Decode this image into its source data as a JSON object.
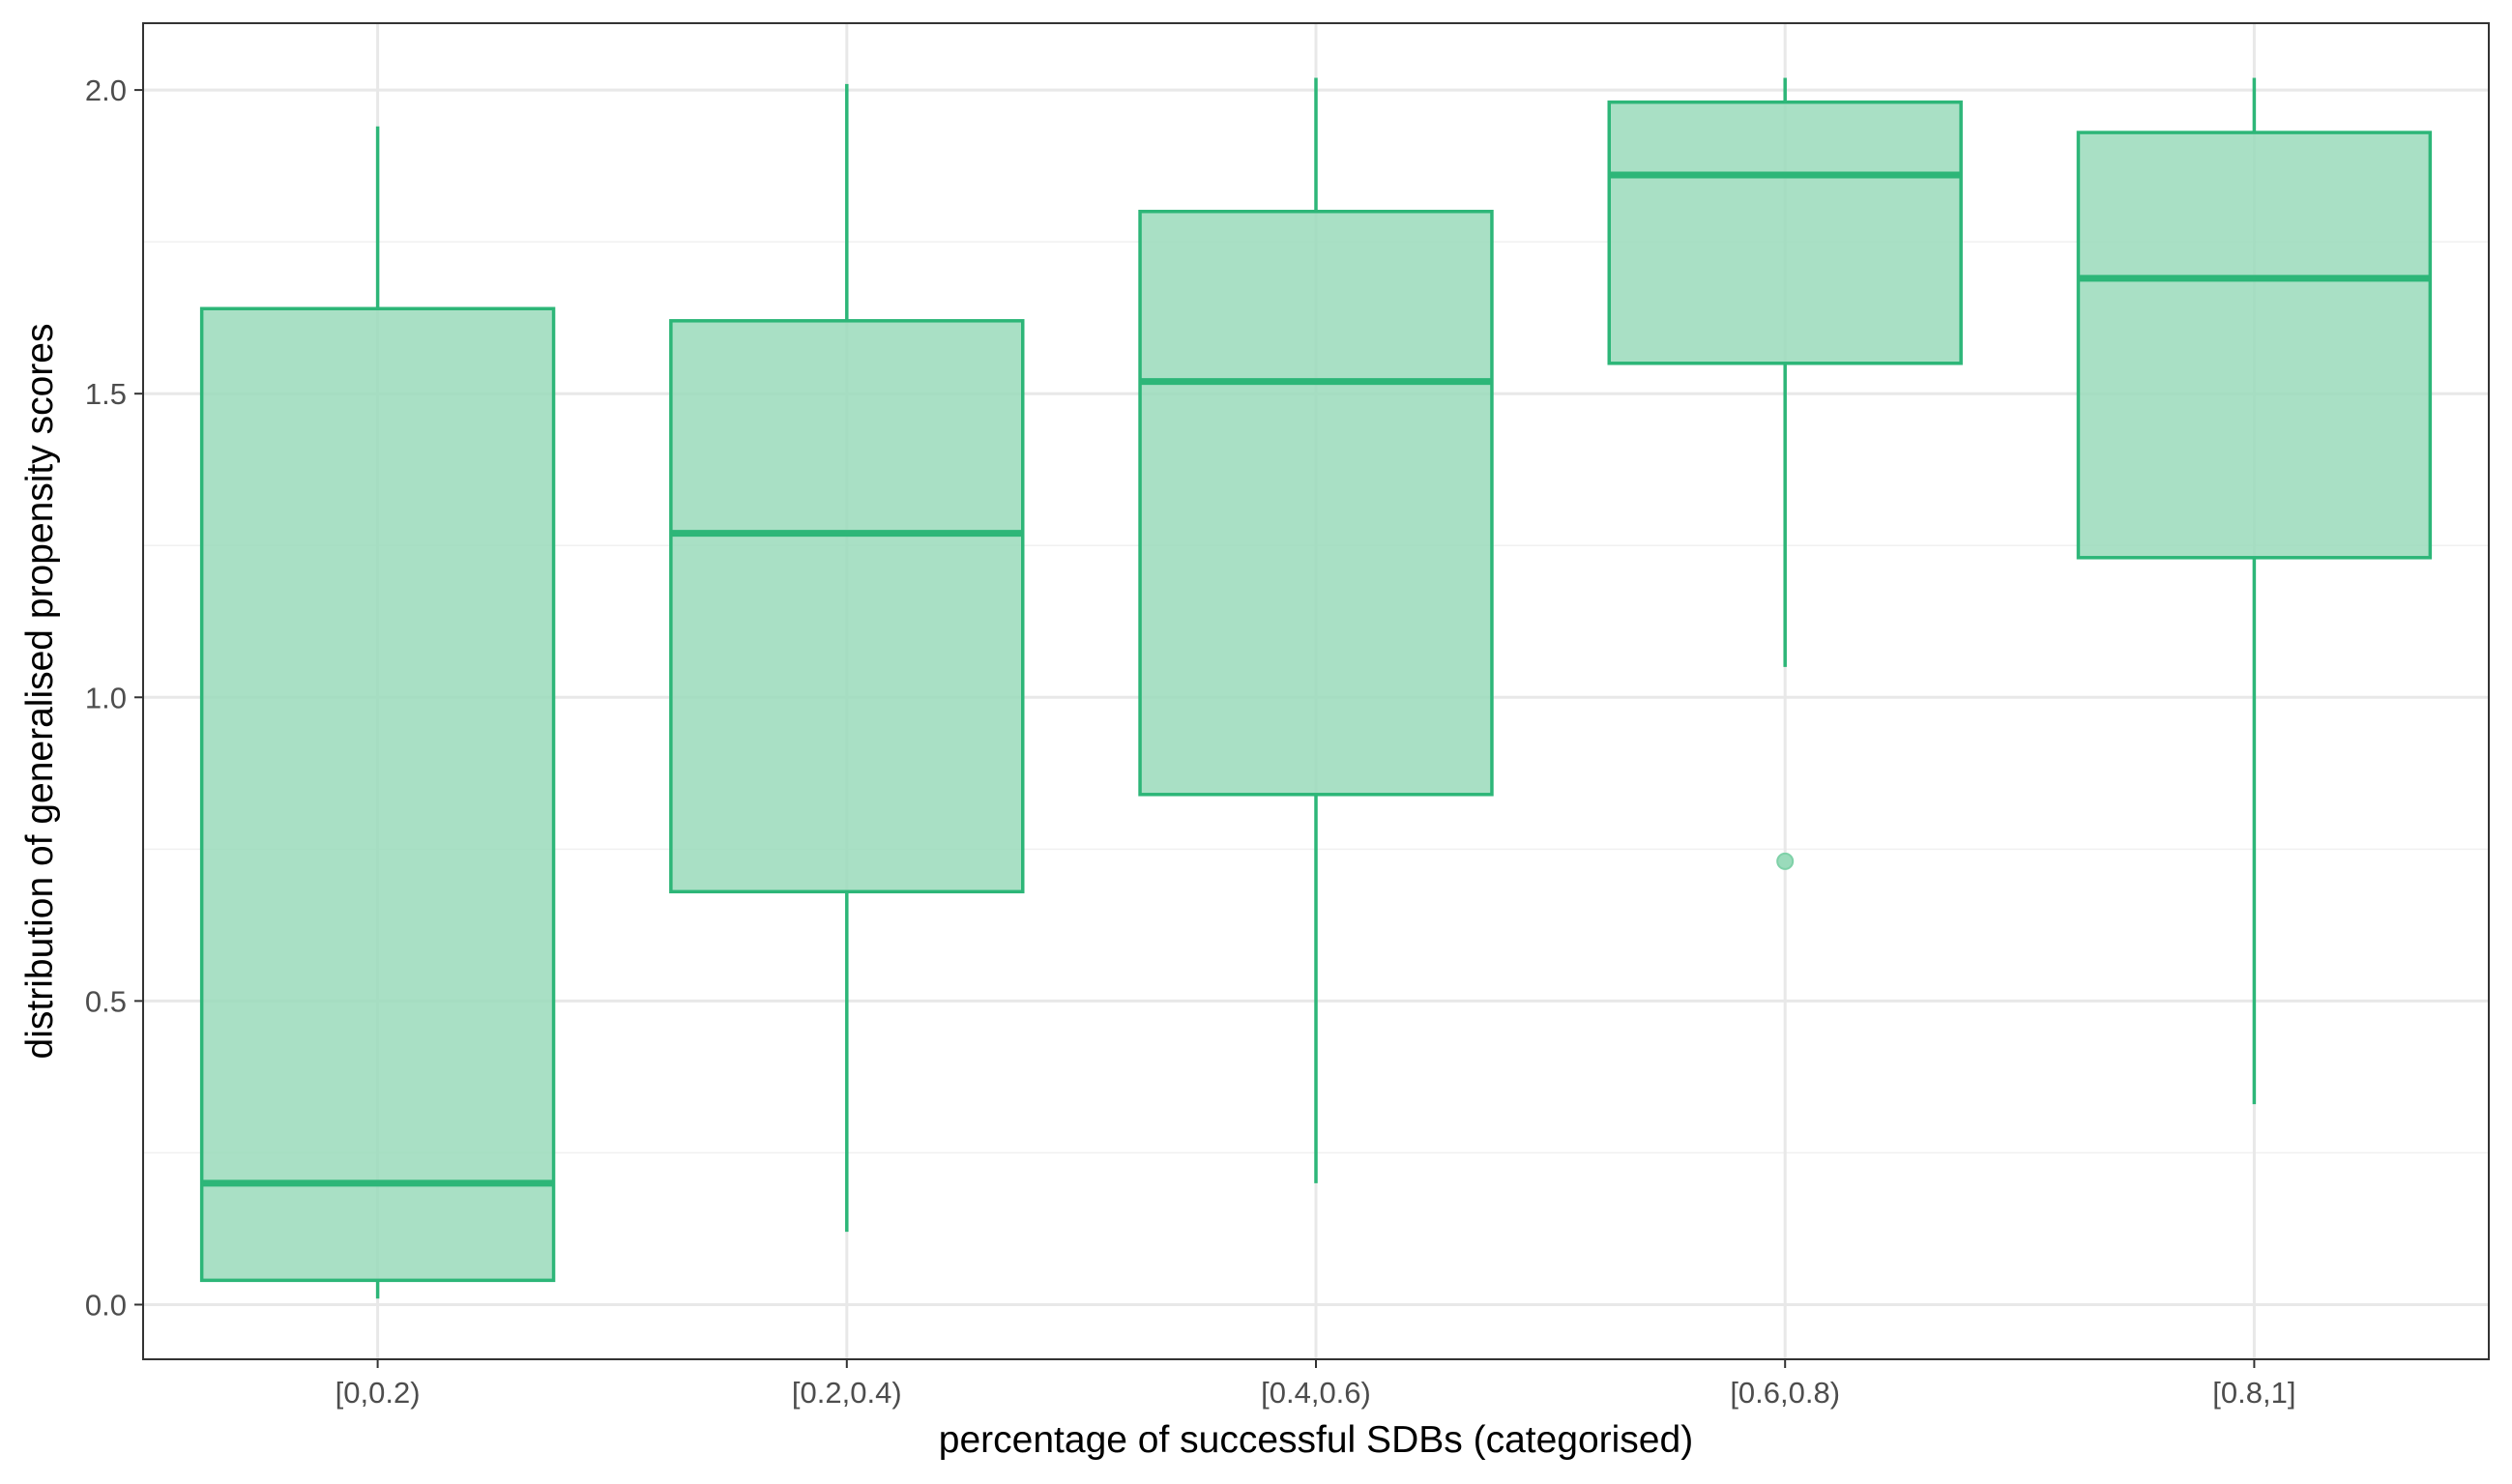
{
  "chart_data": {
    "type": "boxplot",
    "title": "",
    "xlabel": "percentage of successful SDBs (categorised)",
    "ylabel": "distribution of generalised propensity scores",
    "categories": [
      "[0,0.2)",
      "[0.2,0.4)",
      "[0.4,0.6)",
      "[0.6,0.8)",
      "[0.8,1]"
    ],
    "ylim": [
      -0.09,
      2.11
    ],
    "yticks": [
      0.0,
      0.5,
      1.0,
      1.5,
      2.0
    ],
    "ytick_labels": [
      "0.0",
      "0.5",
      "1.0",
      "1.5",
      "2.0"
    ],
    "grid": true,
    "fill_color": "#9adbbb",
    "line_color": "#2db678",
    "boxes": [
      {
        "category": "[0,0.2)",
        "whisker_low": 0.01,
        "q1": 0.04,
        "median": 0.2,
        "q3": 1.64,
        "whisker_high": 1.94,
        "outliers": []
      },
      {
        "category": "[0.2,0.4)",
        "whisker_low": 0.12,
        "q1": 0.68,
        "median": 1.27,
        "q3": 1.62,
        "whisker_high": 2.01,
        "outliers": []
      },
      {
        "category": "[0.4,0.6)",
        "whisker_low": 0.2,
        "q1": 0.84,
        "median": 1.52,
        "q3": 1.8,
        "whisker_high": 2.02,
        "outliers": []
      },
      {
        "category": "[0.6,0.8)",
        "whisker_low": 1.05,
        "q1": 1.55,
        "median": 1.86,
        "q3": 1.98,
        "whisker_high": 2.02,
        "outliers": [
          0.73
        ]
      },
      {
        "category": "[0.8,1]",
        "whisker_low": 0.33,
        "q1": 1.23,
        "median": 1.69,
        "q3": 1.93,
        "whisker_high": 2.02,
        "outliers": []
      }
    ]
  }
}
